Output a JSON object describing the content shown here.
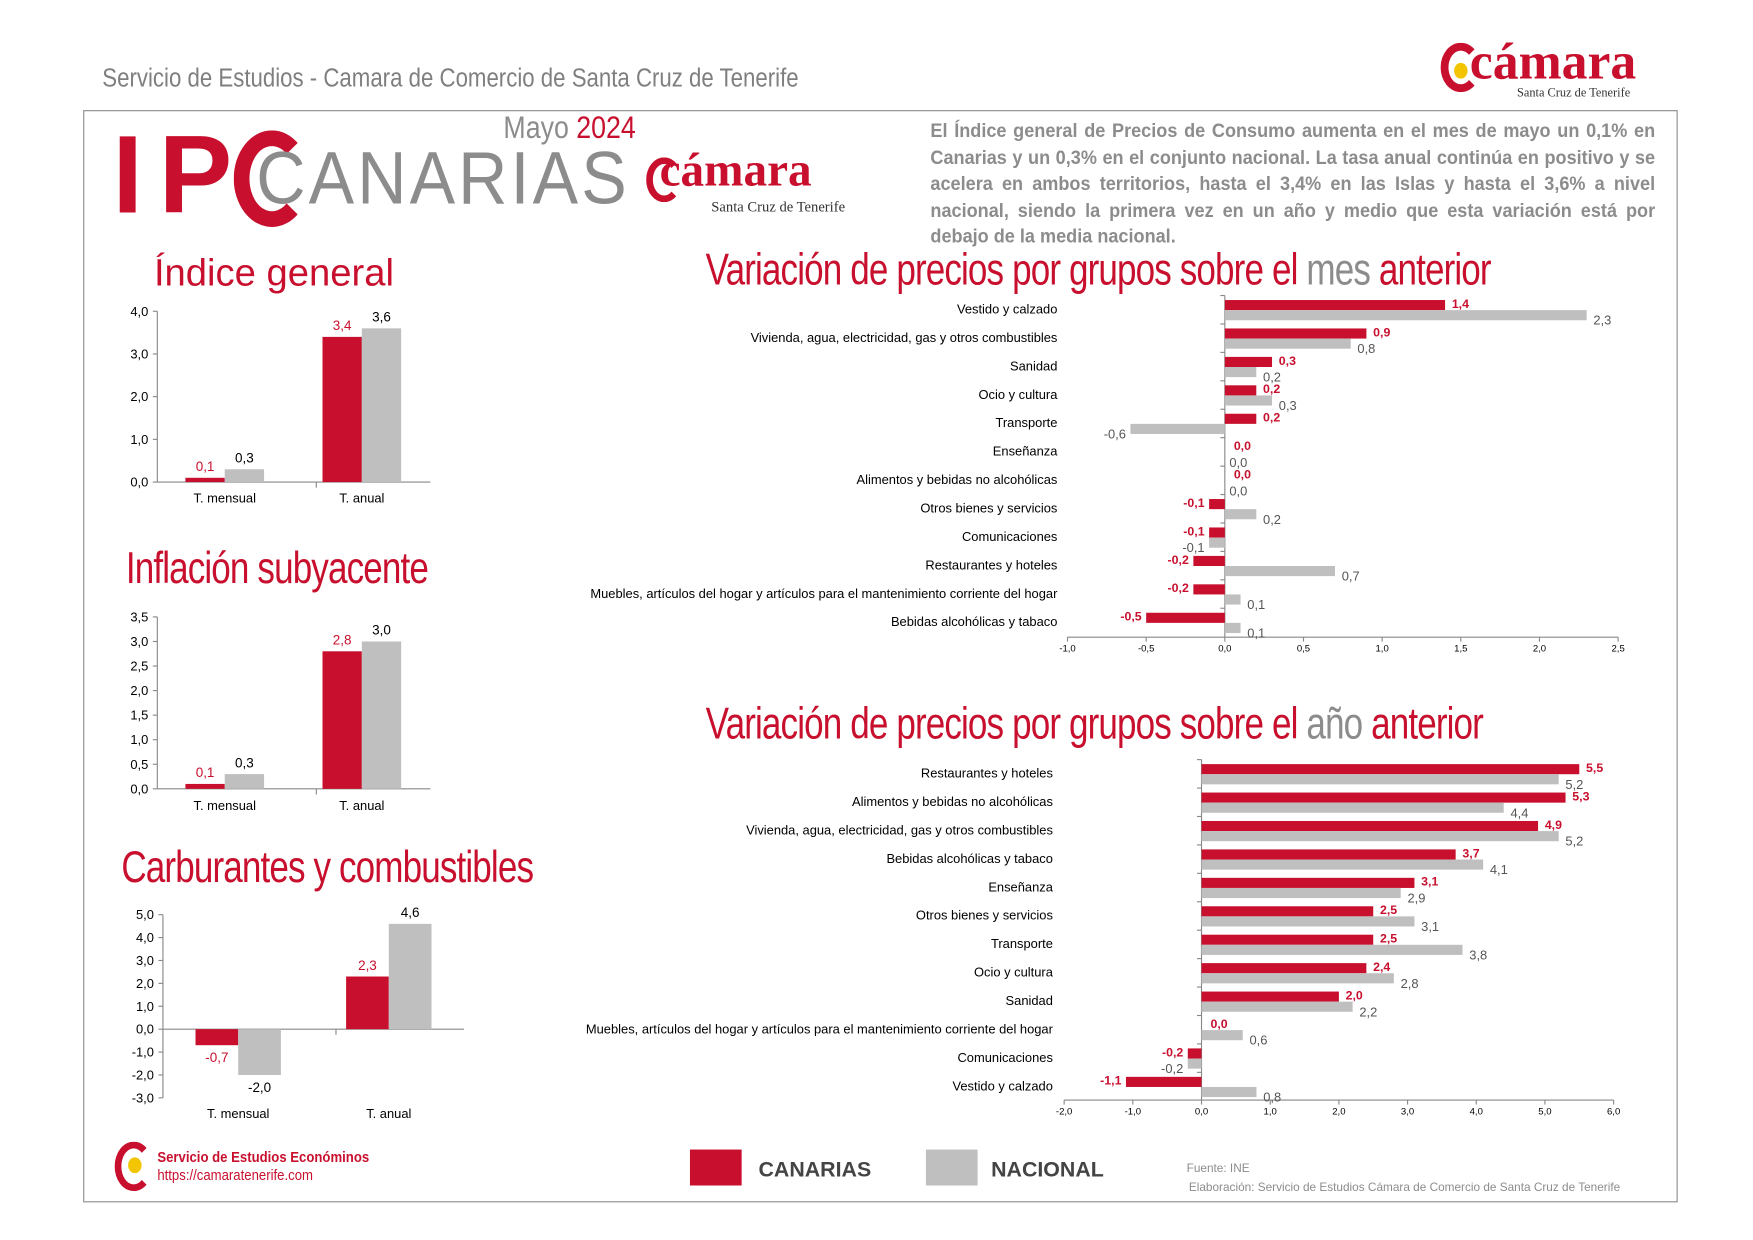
{
  "header": {
    "title": "Servicio de Estudios - Camara de Comercio de Santa Cruz de Tenerife",
    "logo_text": "cámara",
    "logo_sub": "Santa Cruz de Tenerife"
  },
  "banner": {
    "ipc": "IP",
    "canarias": "CANARIAS",
    "month": "Mayo",
    "year": "2024",
    "logo_text": "cámara",
    "logo_sub": "Santa Cruz de Tenerife"
  },
  "summary": "El Índice general de Precios de Consumo aumenta en el mes de mayo un 0,1% en Canarias y un 0,3% en el conjunto nacional. La tasa anual continúa en positivo y se acelera en ambos territorios, hasta el 3,4% en las Islas y hasta el 3,6% a nivel nacional, siendo la primera vez en un año y medio que esta variación está por debajo de la media nacional.",
  "colors": {
    "canarias": "#c8102e",
    "nacional": "#bfbfbf",
    "title_grey": "#8c8c8c"
  },
  "titles": {
    "mes_a": "Variación de precios por grupos sobre el ",
    "mes_b": "mes",
    "mes_c": " anterior",
    "anio_a": "Variación de precios por grupos sobre el ",
    "anio_b": "año",
    "anio_c": " anterior"
  },
  "legend": {
    "canarias": "CANARIAS",
    "nacional": "NACIONAL"
  },
  "footer": {
    "service": "Servicio de Estudios Económinos",
    "url": "https://camaratenerife.com",
    "source": "Fuente: INE",
    "credit": "Elaboración: Servicio de Estudios Cámara de Comercio de Santa Cruz de Tenerife"
  },
  "chart_data": [
    {
      "id": "indice",
      "type": "bar",
      "title": "Índice general",
      "categories": [
        "T. mensual",
        "T. anual"
      ],
      "series": [
        {
          "name": "CANARIAS",
          "values": [
            0.1,
            3.4
          ]
        },
        {
          "name": "NACIONAL",
          "values": [
            0.3,
            3.6
          ]
        }
      ],
      "ylim": [
        0,
        4
      ],
      "yticks": [
        0,
        1,
        2,
        3,
        4
      ],
      "tick_labels": [
        "0,0",
        "1,0",
        "2,0",
        "3,0",
        "4,0"
      ]
    },
    {
      "id": "subyacente",
      "type": "bar",
      "title": "Inflación subyacente",
      "categories": [
        "T. mensual",
        "T. anual"
      ],
      "series": [
        {
          "name": "CANARIAS",
          "values": [
            0.1,
            2.8
          ]
        },
        {
          "name": "NACIONAL",
          "values": [
            0.3,
            3.0
          ]
        }
      ],
      "ylim": [
        0,
        3.5
      ],
      "yticks": [
        0,
        0.5,
        1,
        1.5,
        2,
        2.5,
        3,
        3.5
      ],
      "tick_labels": [
        "0,0",
        "0,5",
        "1,0",
        "1,5",
        "2,0",
        "2,5",
        "3,0",
        "3,5"
      ]
    },
    {
      "id": "carburantes",
      "type": "bar",
      "title": "Carburantes y combustibles",
      "categories": [
        "T. mensual",
        "T. anual"
      ],
      "series": [
        {
          "name": "CANARIAS",
          "values": [
            -0.7,
            2.3
          ]
        },
        {
          "name": "NACIONAL",
          "values": [
            -2.0,
            4.6
          ]
        }
      ],
      "ylim": [
        -3,
        5
      ],
      "yticks": [
        -3,
        -2,
        -1,
        0,
        1,
        2,
        3,
        4,
        5
      ],
      "tick_labels": [
        "-3,0",
        "-2,0",
        "-1,0",
        "0,0",
        "1,0",
        "2,0",
        "3,0",
        "4,0",
        "5,0"
      ]
    },
    {
      "id": "mes",
      "type": "bar",
      "orientation": "horizontal",
      "categories": [
        "Vestido y calzado",
        "Vivienda, agua, electricidad, gas y otros combustibles",
        "Sanidad",
        "Ocio y cultura",
        "Transporte",
        "Enseñanza",
        "Alimentos y bebidas no alcohólicas",
        "Otros bienes y servicios",
        "Comunicaciones",
        "Restaurantes y hoteles",
        "Muebles, artículos del hogar y artículos para el mantenimiento corriente del hogar",
        "Bebidas alcohólicas y tabaco"
      ],
      "series": [
        {
          "name": "CANARIAS",
          "values": [
            1.4,
            0.9,
            0.3,
            0.2,
            0.2,
            0.0,
            0.0,
            -0.1,
            -0.1,
            -0.2,
            -0.2,
            -0.5
          ]
        },
        {
          "name": "NACIONAL",
          "values": [
            2.3,
            0.8,
            0.2,
            0.3,
            -0.6,
            0.0,
            0.0,
            0.2,
            -0.1,
            0.7,
            0.1,
            0.1
          ]
        }
      ],
      "xlim": [
        -1,
        2.5
      ],
      "xticks": [
        -1,
        -0.5,
        0,
        0.5,
        1,
        1.5,
        2,
        2.5
      ],
      "tick_labels": [
        "-1,0",
        "-0,5",
        "0,0",
        "0,5",
        "1,0",
        "1,5",
        "2,0",
        "2,5"
      ]
    },
    {
      "id": "anio",
      "type": "bar",
      "orientation": "horizontal",
      "categories": [
        "Restaurantes y hoteles",
        "Alimentos y bebidas no alcohólicas",
        "Vivienda, agua, electricidad, gas y otros combustibles",
        "Bebidas alcohólicas y tabaco",
        "Enseñanza",
        "Otros bienes y servicios",
        "Transporte",
        "Ocio y cultura",
        "Sanidad",
        "Muebles, artículos del hogar y artículos para el mantenimiento corriente del hogar",
        "Comunicaciones",
        "Vestido y calzado"
      ],
      "series": [
        {
          "name": "CANARIAS",
          "values": [
            5.5,
            5.3,
            4.9,
            3.7,
            3.1,
            2.5,
            2.5,
            2.4,
            2.0,
            0.0,
            -0.2,
            -1.1
          ]
        },
        {
          "name": "NACIONAL",
          "values": [
            5.2,
            4.4,
            5.2,
            4.1,
            2.9,
            3.1,
            3.8,
            2.8,
            2.2,
            0.6,
            -0.2,
            0.8
          ]
        }
      ],
      "xlim": [
        -2,
        6
      ],
      "xticks": [
        -2,
        -1,
        0,
        1,
        2,
        3,
        4,
        5,
        6
      ],
      "tick_labels": [
        "-2,0",
        "-1,0",
        "0,0",
        "1,0",
        "2,0",
        "3,0",
        "4,0",
        "5,0",
        "6,0"
      ]
    }
  ]
}
